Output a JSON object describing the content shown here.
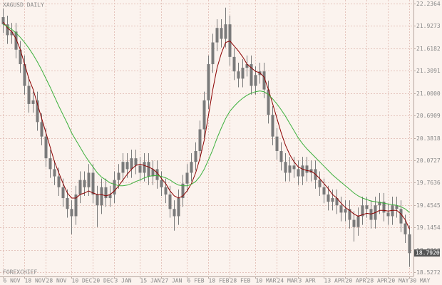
{
  "chart_data": {
    "type": "candlestick",
    "title": "XAGUSD DAILY",
    "watermark": "FOREXCHIEF",
    "categories": [
      "6 NOV",
      null,
      null,
      null,
      null,
      "18 NOV",
      null,
      null,
      null,
      null,
      "28 NOV",
      null,
      null,
      null,
      null,
      null,
      "10 DEC",
      null,
      null,
      null,
      null,
      "20 DEC",
      null,
      null,
      null,
      null,
      "3 JAN",
      null,
      null,
      null,
      null,
      null,
      "15 JAN",
      null,
      null,
      null,
      null,
      "27 JAN",
      null,
      null,
      null,
      null,
      null,
      "6 FEB",
      null,
      null,
      null,
      null,
      "18 FEB",
      null,
      null,
      null,
      null,
      "28 FEB",
      null,
      null,
      null,
      null,
      null,
      "10 MAR",
      null,
      null,
      null,
      null,
      "24 MAR",
      null,
      null,
      null,
      null,
      "3 APR",
      null,
      null,
      null,
      null,
      null,
      "13 APR",
      null,
      null,
      null,
      null,
      "20 APR",
      null,
      null,
      null,
      null,
      "28 APR",
      null,
      null,
      null,
      null,
      "20 MAY",
      null,
      null,
      null,
      null,
      "30 MAY"
    ],
    "open": [
      22.05,
      21.95,
      21.8,
      21.85,
      21.6,
      21.4,
      21.1,
      20.85,
      20.9,
      20.6,
      20.4,
      20.1,
      19.95,
      19.85,
      19.7,
      19.55,
      19.4,
      19.3,
      19.6,
      19.8,
      19.7,
      19.9,
      19.6,
      19.45,
      19.7,
      19.55,
      19.6,
      19.8,
      19.9,
      20.05,
      19.95,
      20.1,
      20.0,
      19.9,
      20.05,
      19.85,
      19.95,
      19.8,
      19.7,
      19.6,
      19.4,
      19.3,
      19.55,
      19.75,
      19.9,
      20.05,
      20.2,
      20.5,
      20.9,
      21.4,
      21.7,
      21.9,
      21.75,
      21.95,
      21.5,
      21.3,
      21.2,
      21.35,
      21.4,
      21.1,
      21.25,
      21.3,
      21.05,
      20.7,
      20.4,
      20.2,
      20.05,
      19.9,
      20.0,
      19.95,
      19.85,
      20.0,
      19.9,
      19.95,
      19.8,
      19.7,
      19.6,
      19.5,
      19.55,
      19.45,
      19.35,
      19.4,
      19.25,
      19.15,
      19.3,
      19.45,
      19.4,
      19.25,
      19.45,
      19.5,
      19.35,
      19.3,
      19.45,
      19.4,
      19.2,
      19.05
    ],
    "high": [
      22.17,
      22.07,
      21.97,
      21.97,
      21.72,
      21.52,
      21.22,
      21.02,
      21.02,
      20.72,
      20.52,
      20.22,
      20.07,
      19.97,
      19.82,
      19.67,
      19.52,
      19.72,
      19.92,
      19.92,
      20.02,
      20.02,
      19.72,
      19.82,
      19.82,
      19.72,
      19.92,
      20.02,
      20.17,
      20.17,
      20.22,
      20.22,
      20.12,
      20.17,
      20.17,
      20.07,
      20.07,
      19.92,
      19.82,
      19.72,
      19.52,
      19.67,
      19.87,
      20.02,
      20.17,
      20.32,
      20.62,
      21.02,
      21.52,
      21.82,
      22.02,
      22.02,
      22.18,
      22.07,
      21.62,
      21.42,
      21.47,
      21.52,
      21.52,
      21.37,
      21.42,
      21.42,
      21.17,
      20.82,
      20.52,
      20.32,
      20.17,
      20.12,
      20.12,
      20.07,
      20.12,
      20.12,
      20.07,
      20.07,
      19.92,
      19.82,
      19.72,
      19.67,
      19.67,
      19.57,
      19.52,
      19.52,
      19.37,
      19.42,
      19.57,
      19.57,
      19.52,
      19.57,
      19.62,
      19.62,
      19.47,
      19.57,
      19.57,
      19.52,
      19.32,
      19.17
    ],
    "low": [
      21.83,
      21.68,
      21.68,
      21.48,
      21.28,
      20.98,
      20.73,
      20.73,
      20.48,
      20.28,
      19.98,
      19.83,
      19.73,
      19.58,
      19.43,
      19.28,
      19.05,
      19.18,
      19.48,
      19.58,
      19.58,
      19.48,
      19.15,
      19.33,
      19.43,
      19.43,
      19.48,
      19.68,
      19.78,
      19.83,
      19.83,
      19.88,
      19.78,
      19.78,
      19.73,
      19.73,
      19.68,
      19.58,
      19.48,
      19.28,
      19.1,
      19.18,
      19.43,
      19.63,
      19.78,
      19.93,
      20.08,
      20.38,
      20.78,
      21.28,
      21.58,
      21.63,
      21.63,
      21.38,
      21.18,
      21.08,
      21.08,
      21.23,
      20.98,
      20.98,
      21.13,
      20.93,
      20.58,
      20.28,
      20.08,
      19.93,
      19.78,
      19.78,
      19.83,
      19.73,
      19.73,
      19.78,
      19.78,
      19.68,
      19.58,
      19.48,
      19.38,
      19.38,
      19.33,
      19.23,
      19.23,
      19.13,
      18.95,
      19.03,
      19.18,
      19.28,
      19.13,
      19.13,
      19.33,
      19.23,
      19.18,
      19.18,
      19.28,
      19.08,
      18.93,
      18.6
    ],
    "close": [
      21.95,
      21.8,
      21.85,
      21.6,
      21.4,
      21.1,
      20.85,
      20.9,
      20.6,
      20.4,
      20.1,
      19.95,
      19.85,
      19.7,
      19.55,
      19.4,
      19.3,
      19.6,
      19.8,
      19.7,
      19.9,
      19.6,
      19.45,
      19.7,
      19.55,
      19.6,
      19.8,
      19.9,
      20.05,
      19.95,
      20.1,
      20.0,
      19.9,
      20.05,
      19.85,
      19.95,
      19.8,
      19.7,
      19.6,
      19.4,
      19.3,
      19.55,
      19.75,
      19.9,
      20.05,
      20.2,
      20.5,
      20.9,
      21.4,
      21.7,
      21.9,
      21.75,
      21.95,
      21.5,
      21.3,
      21.2,
      21.35,
      21.4,
      21.1,
      21.25,
      21.3,
      21.05,
      20.7,
      20.4,
      20.2,
      20.05,
      19.9,
      20.0,
      19.95,
      19.85,
      20.0,
      19.9,
      19.95,
      19.8,
      19.7,
      19.6,
      19.5,
      19.55,
      19.45,
      19.35,
      19.4,
      19.25,
      19.15,
      19.3,
      19.45,
      19.4,
      19.25,
      19.45,
      19.5,
      19.35,
      19.3,
      19.45,
      19.4,
      19.2,
      19.05,
      18.79
    ],
    "candle_color": "#7a7a7a",
    "series": [
      {
        "color": "#8b0000",
        "values": [
          21.98,
          21.9,
          21.85,
          21.75,
          21.6,
          21.4,
          21.2,
          21.05,
          20.85,
          20.65,
          20.45,
          20.25,
          20.05,
          19.9,
          19.75,
          19.62,
          19.55,
          19.55,
          19.6,
          19.62,
          19.65,
          19.62,
          19.6,
          19.6,
          19.58,
          19.6,
          19.65,
          19.72,
          19.8,
          19.88,
          19.95,
          20.0,
          20.02,
          20.0,
          19.98,
          19.95,
          19.9,
          19.82,
          19.75,
          19.65,
          19.58,
          19.55,
          19.58,
          19.65,
          19.75,
          19.9,
          20.1,
          20.35,
          20.7,
          21.05,
          21.35,
          21.55,
          21.7,
          21.72,
          21.65,
          21.58,
          21.5,
          21.4,
          21.35,
          21.3,
          21.28,
          21.22,
          21.05,
          20.85,
          20.65,
          20.45,
          20.28,
          20.15,
          20.05,
          19.98,
          19.95,
          19.93,
          19.92,
          19.88,
          19.82,
          19.75,
          19.68,
          19.6,
          19.55,
          19.48,
          19.42,
          19.38,
          19.33,
          19.3,
          19.32,
          19.34,
          19.33,
          19.35,
          19.38,
          19.38,
          19.37,
          19.38,
          19.38,
          19.33,
          19.25,
          19.12
        ]
      },
      {
        "color": "#3cb03c",
        "values": [
          21.95,
          21.92,
          21.88,
          21.83,
          21.77,
          21.7,
          21.62,
          21.53,
          21.43,
          21.32,
          21.2,
          21.08,
          20.95,
          20.82,
          20.7,
          20.58,
          20.45,
          20.35,
          20.25,
          20.15,
          20.06,
          19.98,
          19.9,
          19.84,
          19.8,
          19.76,
          19.74,
          19.72,
          19.72,
          19.73,
          19.75,
          19.78,
          19.8,
          19.83,
          19.85,
          19.86,
          19.86,
          19.85,
          19.83,
          19.8,
          19.76,
          19.73,
          19.72,
          19.72,
          19.74,
          19.78,
          19.85,
          19.95,
          20.08,
          20.22,
          20.38,
          20.52,
          20.65,
          20.75,
          20.82,
          20.88,
          20.93,
          20.97,
          21.0,
          21.02,
          21.03,
          21.02,
          20.98,
          20.92,
          20.85,
          20.77,
          20.68,
          20.58,
          20.48,
          20.38,
          20.3,
          20.23,
          20.17,
          20.11,
          20.05,
          19.99,
          19.93,
          19.87,
          19.82,
          19.77,
          19.72,
          19.67,
          19.62,
          19.58,
          19.55,
          19.53,
          19.51,
          19.5,
          19.49,
          19.48,
          19.47,
          19.46,
          19.45,
          19.43,
          19.4,
          19.35
        ]
      }
    ],
    "current_price": {
      "value": 18.792,
      "label": "18.7920"
    },
    "ylim": [
      18.468,
      22.286
    ],
    "yticks": [
      22.2364,
      21.9273,
      21.6182,
      21.3091,
      {
        "value": 21,
        "label": "21.0000"
      },
      20.6909,
      20.3818,
      20.0727,
      19.7636,
      19.4545,
      19.1454,
      18.8363,
      18.5272
    ],
    "grid": true
  }
}
